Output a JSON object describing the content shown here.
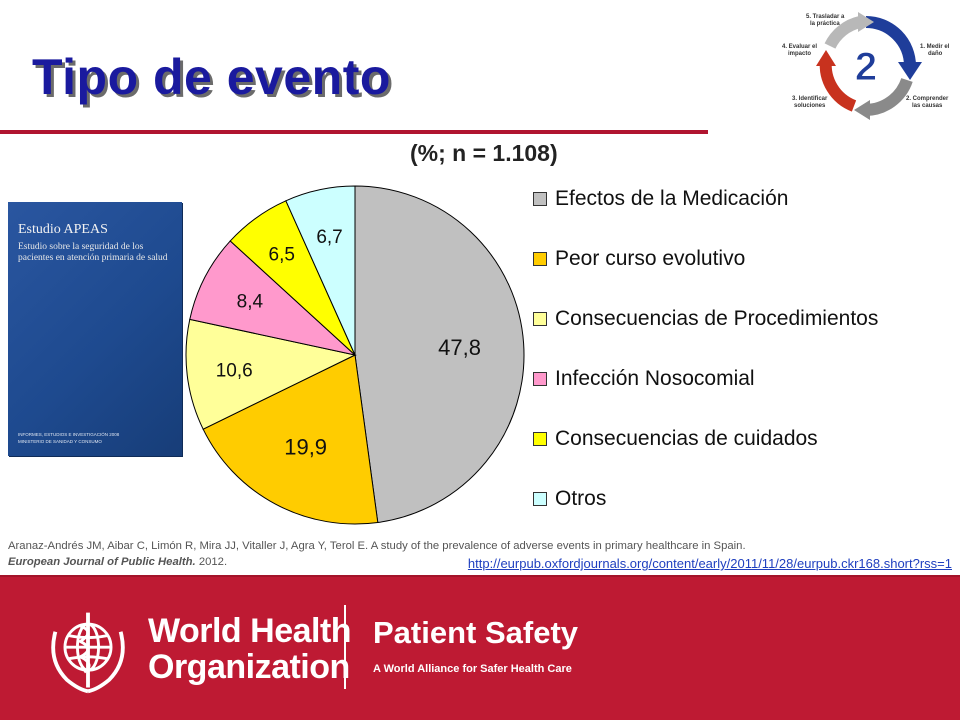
{
  "slide": {
    "title": "Tipo de evento",
    "subtitle": "(%; n = 1.108)"
  },
  "cycle": {
    "number": "2",
    "steps": [
      {
        "lines": [
          "5. Trasladar a",
          "la práctica"
        ]
      },
      {
        "lines": [
          "1. Medir el",
          "daño"
        ]
      },
      {
        "lines": [
          "2. Comprender",
          "las causas"
        ]
      },
      {
        "lines": [
          "3. Identificar",
          "soluciones"
        ]
      },
      {
        "lines": [
          "4. Evaluar el",
          "impacto"
        ]
      }
    ],
    "colors": {
      "blue": "#1f3d9a",
      "gray": "#8a8a8a",
      "red": "#c8321e"
    }
  },
  "book": {
    "title": "Estudio APEAS",
    "subtitle": "Estudio sobre la seguridad de los pacientes en atención primaria de salud",
    "footer_line1": "INFORMES, ESTUDIOS E INVESTIGACIÓN 2008",
    "footer_line2": "MINISTERIO DE SANIDAD Y CONSUMO"
  },
  "chart_data": {
    "type": "pie",
    "title": "(%; n = 1.108)",
    "categories": [
      "Efectos de la Medicación",
      "Peor curso evolutivo",
      "Consecuencias de Procedimientos",
      "Infección Nosocomial",
      "Consecuencias de cuidados",
      "Otros"
    ],
    "values": [
      47.8,
      19.9,
      10.6,
      8.4,
      6.5,
      6.7
    ],
    "data_labels": [
      "47,8",
      "19,9",
      "10,6",
      "8,4",
      "6,5",
      "6,7"
    ],
    "colors": [
      "#c0c0c0",
      "#ffcc00",
      "#ffff99",
      "#ff99cc",
      "#ffff00",
      "#ccffff"
    ],
    "start": "12 o'clock",
    "direction": "clockwise",
    "legend_position": "right"
  },
  "citation": {
    "text": "Aranaz-Andrés JM, Aibar C, Limón R, Mira JJ, Vitaller J, Agra Y, Terol E. A study of the prevalence of adverse events in primary healthcare in Spain.",
    "journal": "European Journal of Public Health.",
    "year": "2012.",
    "link": "http://eurpub.oxfordjournals.org/content/early/2011/11/28/eurpub.ckr168.short?rss=1"
  },
  "footer": {
    "org_line1": "World Health",
    "org_line2": "Organization",
    "program": "Patient Safety",
    "tagline": "A World Alliance for Safer Health Care",
    "background": "#be1a33"
  }
}
